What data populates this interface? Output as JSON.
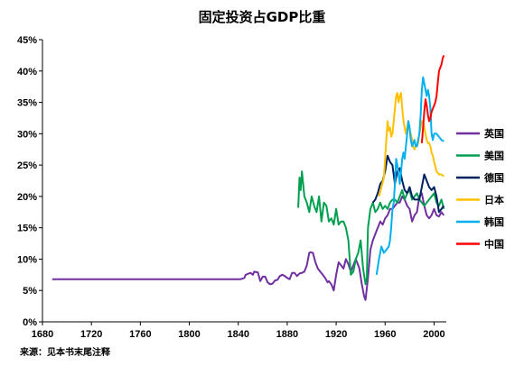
{
  "chart_data": {
    "type": "line",
    "title": "固定投资占GDP比重",
    "xlabel": "",
    "ylabel": "",
    "xlim": [
      1680,
      2010
    ],
    "ylim": [
      0,
      0.45
    ],
    "xticks": [
      1680,
      1720,
      1760,
      1800,
      1840,
      1880,
      1920,
      1960,
      2000
    ],
    "yticks": [
      0,
      0.05,
      0.1,
      0.15,
      0.2,
      0.25,
      0.3,
      0.35,
      0.4,
      0.45
    ],
    "ytick_labels": [
      "0%",
      "5%",
      "10%",
      "15%",
      "20%",
      "25%",
      "30%",
      "35%",
      "40%",
      "45%"
    ],
    "grid": false,
    "legend_position": "right",
    "source": "来源：见本书末尾注释",
    "series": [
      {
        "name": "英国",
        "color": "#7030a0",
        "x": [
          1688,
          1700,
          1750,
          1800,
          1830,
          1842,
          1845,
          1846,
          1850,
          1852,
          1853,
          1856,
          1858,
          1860,
          1862,
          1864,
          1866,
          1868,
          1870,
          1872,
          1874,
          1876,
          1878,
          1880,
          1882,
          1884,
          1886,
          1888,
          1890,
          1892,
          1894,
          1896,
          1898,
          1899,
          1901,
          1903,
          1905,
          1907,
          1909,
          1911,
          1913,
          1914,
          1916,
          1918,
          1920,
          1922,
          1924,
          1926,
          1928,
          1930,
          1932,
          1934,
          1936,
          1938,
          1939,
          1941,
          1943,
          1944,
          1946,
          1948,
          1950,
          1952,
          1954,
          1956,
          1958,
          1960,
          1962,
          1964,
          1966,
          1968,
          1970,
          1972,
          1974,
          1976,
          1978,
          1980,
          1982,
          1984,
          1986,
          1988,
          1990,
          1992,
          1994,
          1996,
          1998,
          2000,
          2002,
          2004,
          2006,
          2008
        ],
        "values": [
          0.068,
          0.068,
          0.068,
          0.068,
          0.068,
          0.068,
          0.07,
          0.075,
          0.078,
          0.075,
          0.08,
          0.079,
          0.065,
          0.072,
          0.072,
          0.063,
          0.06,
          0.061,
          0.066,
          0.067,
          0.073,
          0.075,
          0.073,
          0.07,
          0.068,
          0.078,
          0.078,
          0.073,
          0.077,
          0.078,
          0.08,
          0.09,
          0.11,
          0.111,
          0.11,
          0.095,
          0.085,
          0.08,
          0.075,
          0.07,
          0.063,
          0.065,
          0.06,
          0.05,
          0.075,
          0.095,
          0.09,
          0.085,
          0.1,
          0.092,
          0.08,
          0.09,
          0.1,
          0.09,
          0.085,
          0.06,
          0.04,
          0.035,
          0.07,
          0.115,
          0.13,
          0.14,
          0.15,
          0.16,
          0.155,
          0.165,
          0.17,
          0.18,
          0.18,
          0.185,
          0.19,
          0.19,
          0.2,
          0.195,
          0.185,
          0.18,
          0.16,
          0.17,
          0.175,
          0.2,
          0.205,
          0.185,
          0.17,
          0.165,
          0.17,
          0.18,
          0.17,
          0.168,
          0.175,
          0.17
        ]
      },
      {
        "name": "美国",
        "color": "#00a050",
        "x": [
          1889,
          1890,
          1891,
          1892,
          1894,
          1896,
          1898,
          1900,
          1902,
          1904,
          1906,
          1908,
          1910,
          1912,
          1914,
          1916,
          1918,
          1920,
          1922,
          1924,
          1926,
          1928,
          1930,
          1932,
          1934,
          1936,
          1938,
          1940,
          1942,
          1944,
          1945,
          1946,
          1948,
          1950,
          1952,
          1954,
          1956,
          1958,
          1960,
          1962,
          1964,
          1966,
          1968,
          1970,
          1972,
          1974,
          1976,
          1978,
          1980,
          1982,
          1984,
          1986,
          1988,
          1990,
          1992,
          1994,
          1996,
          1998,
          2000,
          2002,
          2004,
          2006,
          2008
        ],
        "values": [
          0.182,
          0.23,
          0.21,
          0.24,
          0.2,
          0.19,
          0.175,
          0.2,
          0.185,
          0.175,
          0.2,
          0.16,
          0.19,
          0.185,
          0.16,
          0.165,
          0.155,
          0.18,
          0.155,
          0.16,
          0.16,
          0.15,
          0.13,
          0.075,
          0.08,
          0.1,
          0.11,
          0.13,
          0.085,
          0.06,
          0.07,
          0.15,
          0.18,
          0.19,
          0.175,
          0.18,
          0.19,
          0.18,
          0.185,
          0.18,
          0.19,
          0.195,
          0.195,
          0.19,
          0.2,
          0.21,
          0.195,
          0.205,
          0.21,
          0.195,
          0.2,
          0.205,
          0.195,
          0.19,
          0.185,
          0.19,
          0.195,
          0.2,
          0.205,
          0.19,
          0.185,
          0.195,
          0.18
        ]
      },
      {
        "name": "德国",
        "color": "#002060",
        "x": [
          1950,
          1952,
          1954,
          1956,
          1958,
          1960,
          1962,
          1964,
          1966,
          1968,
          1970,
          1972,
          1974,
          1976,
          1978,
          1980,
          1982,
          1984,
          1986,
          1988,
          1990,
          1992,
          1994,
          1996,
          1998,
          2000,
          2002,
          2004,
          2006,
          2008
        ],
        "values": [
          0.19,
          0.195,
          0.205,
          0.22,
          0.225,
          0.24,
          0.265,
          0.255,
          0.25,
          0.22,
          0.24,
          0.245,
          0.225,
          0.21,
          0.205,
          0.215,
          0.2,
          0.195,
          0.195,
          0.195,
          0.215,
          0.235,
          0.225,
          0.215,
          0.21,
          0.215,
          0.2,
          0.175,
          0.18,
          0.185
        ]
      },
      {
        "name": "日本",
        "color": "#ffc000",
        "x": [
          1955,
          1957,
          1959,
          1960,
          1961,
          1962,
          1963,
          1964,
          1965,
          1966,
          1967,
          1968,
          1969,
          1970,
          1971,
          1972,
          1973,
          1974,
          1975,
          1976,
          1977,
          1978,
          1979,
          1980,
          1981,
          1982,
          1983,
          1984,
          1985,
          1986,
          1987,
          1988,
          1989,
          1990,
          1991,
          1992,
          1993,
          1994,
          1995,
          1996,
          1997,
          1998,
          1999,
          2000,
          2002,
          2004,
          2006,
          2008
        ],
        "values": [
          0.2,
          0.215,
          0.23,
          0.26,
          0.29,
          0.32,
          0.305,
          0.31,
          0.295,
          0.3,
          0.32,
          0.34,
          0.36,
          0.365,
          0.35,
          0.36,
          0.365,
          0.34,
          0.32,
          0.31,
          0.3,
          0.31,
          0.32,
          0.305,
          0.3,
          0.29,
          0.28,
          0.275,
          0.28,
          0.28,
          0.285,
          0.3,
          0.31,
          0.32,
          0.32,
          0.31,
          0.3,
          0.29,
          0.285,
          0.285,
          0.28,
          0.27,
          0.265,
          0.255,
          0.24,
          0.235,
          0.235,
          0.232
        ]
      },
      {
        "name": "韩国",
        "color": "#00b0f0",
        "x": [
          1953,
          1955,
          1957,
          1959,
          1961,
          1963,
          1964,
          1965,
          1966,
          1967,
          1968,
          1969,
          1970,
          1971,
          1972,
          1973,
          1974,
          1975,
          1976,
          1977,
          1978,
          1979,
          1980,
          1981,
          1982,
          1983,
          1984,
          1985,
          1986,
          1987,
          1988,
          1989,
          1990,
          1991,
          1992,
          1993,
          1994,
          1995,
          1996,
          1997,
          1998,
          1999,
          2000,
          2002,
          2004,
          2006,
          2008
        ],
        "values": [
          0.075,
          0.1,
          0.12,
          0.11,
          0.115,
          0.12,
          0.13,
          0.15,
          0.18,
          0.19,
          0.22,
          0.26,
          0.25,
          0.235,
          0.22,
          0.24,
          0.26,
          0.27,
          0.26,
          0.28,
          0.3,
          0.32,
          0.31,
          0.29,
          0.28,
          0.285,
          0.29,
          0.28,
          0.28,
          0.29,
          0.3,
          0.33,
          0.37,
          0.39,
          0.38,
          0.37,
          0.36,
          0.37,
          0.36,
          0.34,
          0.3,
          0.29,
          0.3,
          0.3,
          0.295,
          0.29,
          0.288
        ]
      },
      {
        "name": "中国",
        "color": "#ff0000",
        "x": [
          1990,
          1991,
          1992,
          1993,
          1994,
          1995,
          1996,
          1997,
          1998,
          1999,
          2000,
          2001,
          2002,
          2003,
          2004,
          2005,
          2006,
          2007,
          2008
        ],
        "values": [
          0.285,
          0.31,
          0.335,
          0.355,
          0.345,
          0.33,
          0.32,
          0.325,
          0.335,
          0.34,
          0.345,
          0.35,
          0.36,
          0.38,
          0.4,
          0.405,
          0.41,
          0.42,
          0.425
        ]
      }
    ]
  }
}
